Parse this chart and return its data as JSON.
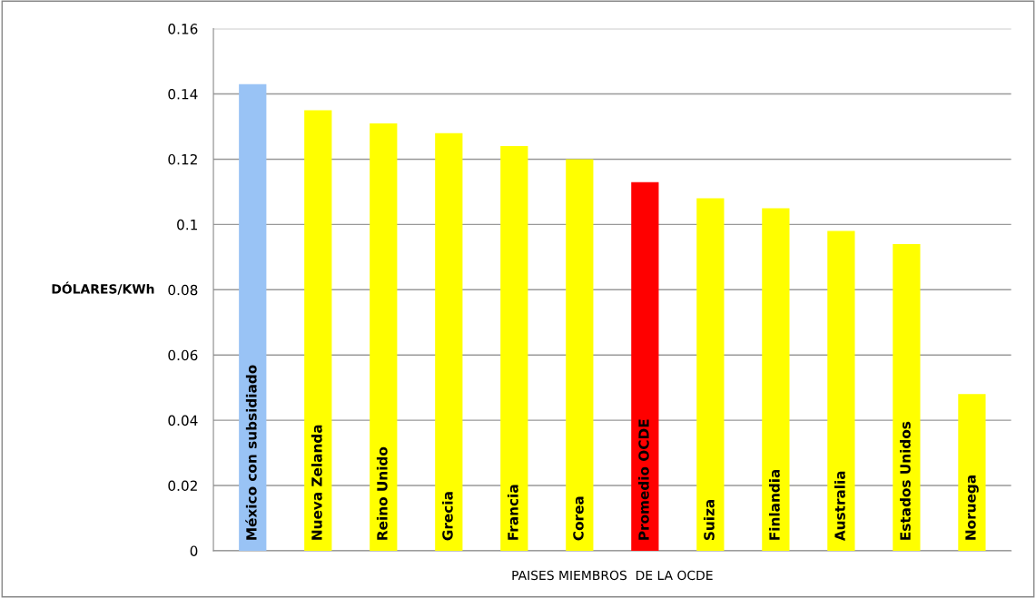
{
  "chart_data": {
    "type": "bar",
    "categories": [
      "México con subsidiado",
      "Nueva Zelanda",
      "Reino Unido",
      "Grecia",
      "Francia",
      "Corea",
      "Promedio OCDE",
      "Suiza",
      "Finlandia",
      "Australia",
      "Estados Unidos",
      "Noruega"
    ],
    "values": [
      0.143,
      0.135,
      0.131,
      0.128,
      0.124,
      0.12,
      0.113,
      0.108,
      0.105,
      0.098,
      0.094,
      0.048
    ],
    "colors": [
      "#99c3f5",
      "#ffff00",
      "#ffff00",
      "#ffff00",
      "#ffff00",
      "#ffff00",
      "#ff0000",
      "#ffff00",
      "#ffff00",
      "#ffff00",
      "#ffff00",
      "#ffff00"
    ],
    "ylabel": "DÓLARES/KWh",
    "xlabel": "PAISES MIEMBROS  DE LA OCDE",
    "ylim": [
      0,
      0.16
    ],
    "yticks": [
      0,
      0.02,
      0.04,
      0.06,
      0.08,
      0.1,
      0.12,
      0.14,
      0.16
    ],
    "grid": "y",
    "legend": false
  }
}
